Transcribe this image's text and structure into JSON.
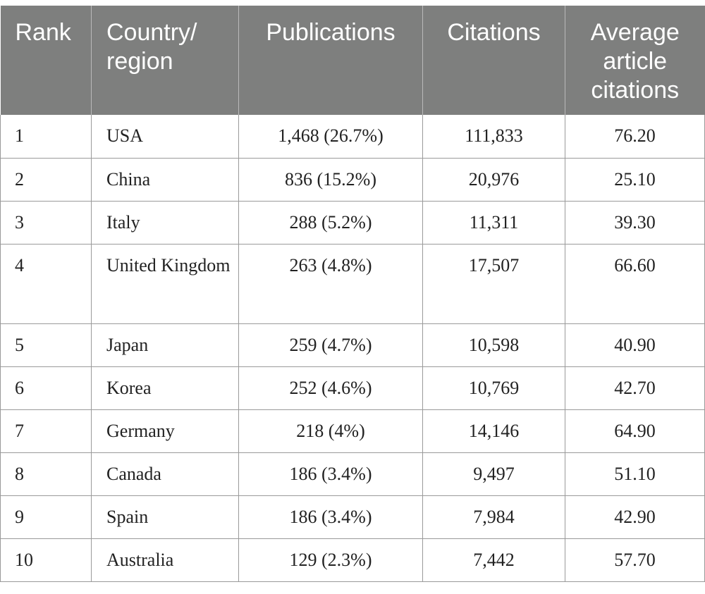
{
  "table": {
    "headers": {
      "rank": "Rank",
      "country": "Country/\nregion",
      "publications": "Publications",
      "citations": "Citations",
      "avg": "Average\narticle\ncitations"
    },
    "rows": [
      {
        "rank": "1",
        "country": "USA",
        "publications": "1,468 (26.7%)",
        "citations": "111,833",
        "avg": "76.20"
      },
      {
        "rank": "2",
        "country": "China",
        "publications": "836 (15.2%)",
        "citations": "20,976",
        "avg": "25.10"
      },
      {
        "rank": "3",
        "country": "Italy",
        "publications": "288 (5.2%)",
        "citations": "11,311",
        "avg": "39.30"
      },
      {
        "rank": "4",
        "country": "United Kingdom",
        "publications": "263 (4.8%)",
        "citations": "17,507",
        "avg": "66.60"
      },
      {
        "rank": "5",
        "country": "Japan",
        "publications": "259 (4.7%)",
        "citations": "10,598",
        "avg": "40.90"
      },
      {
        "rank": "6",
        "country": "Korea",
        "publications": "252 (4.6%)",
        "citations": "10,769",
        "avg": "42.70"
      },
      {
        "rank": "7",
        "country": "Germany",
        "publications": "218 (4%)",
        "citations": "14,146",
        "avg": "64.90"
      },
      {
        "rank": "8",
        "country": "Canada",
        "publications": "186 (3.4%)",
        "citations": "9,497",
        "avg": "51.10"
      },
      {
        "rank": "9",
        "country": "Spain",
        "publications": "186 (3.4%)",
        "citations": "7,984",
        "avg": "42.90"
      },
      {
        "rank": "10",
        "country": "Australia",
        "publications": "129 (2.3%)",
        "citations": "7,442",
        "avg": "57.70"
      }
    ]
  }
}
